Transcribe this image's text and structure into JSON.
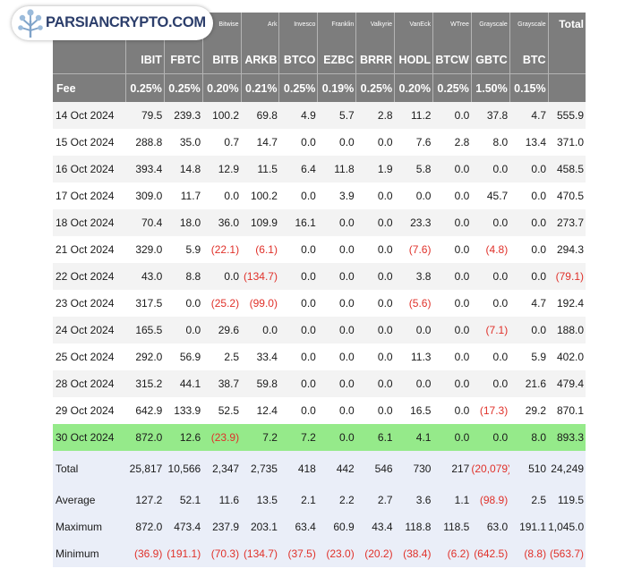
{
  "brand": {
    "name": "PARSIANCRYPTO.COM",
    "logo_icon": "tree-network-icon",
    "accent": "#2c3e6b"
  },
  "header": {
    "issuers": [
      "",
      "",
      "",
      "Bitwise",
      "Ark",
      "Invesco",
      "Franklin",
      "Valkyrie",
      "VanEck",
      "WTree",
      "Grayscale",
      "Grayscale",
      "Total"
    ],
    "tickers": [
      "",
      "IBIT",
      "FBTC",
      "BITB",
      "ARKB",
      "BTCO",
      "EZBC",
      "BRRR",
      "HODL",
      "BTCW",
      "GBTC",
      "BTC",
      ""
    ],
    "fee_label": "Fee",
    "fees": [
      "0.25%",
      "0.25%",
      "0.20%",
      "0.21%",
      "0.25%",
      "0.19%",
      "0.25%",
      "0.20%",
      "0.25%",
      "1.50%",
      "0.15%",
      ""
    ]
  },
  "rows": [
    [
      "14 Oct 2024",
      "79.5",
      "239.3",
      "100.2",
      "69.8",
      "4.9",
      "5.7",
      "2.8",
      "11.2",
      "0.0",
      "37.8",
      "4.7",
      "555.9"
    ],
    [
      "15 Oct 2024",
      "288.8",
      "35.0",
      "0.7",
      "14.7",
      "0.0",
      "0.0",
      "0.0",
      "7.6",
      "2.8",
      "8.0",
      "13.4",
      "371.0"
    ],
    [
      "16 Oct 2024",
      "393.4",
      "14.8",
      "12.9",
      "11.5",
      "6.4",
      "11.8",
      "1.9",
      "5.8",
      "0.0",
      "0.0",
      "0.0",
      "458.5"
    ],
    [
      "17 Oct 2024",
      "309.0",
      "11.7",
      "0.0",
      "100.2",
      "0.0",
      "3.9",
      "0.0",
      "0.0",
      "0.0",
      "45.7",
      "0.0",
      "470.5"
    ],
    [
      "18 Oct 2024",
      "70.4",
      "18.0",
      "36.0",
      "109.9",
      "16.1",
      "0.0",
      "0.0",
      "23.3",
      "0.0",
      "0.0",
      "0.0",
      "273.7"
    ],
    [
      "21 Oct 2024",
      "329.0",
      "5.9",
      "(22.1)",
      "(6.1)",
      "0.0",
      "0.0",
      "0.0",
      "(7.6)",
      "0.0",
      "(4.8)",
      "0.0",
      "294.3"
    ],
    [
      "22 Oct 2024",
      "43.0",
      "8.8",
      "0.0",
      "(134.7)",
      "0.0",
      "0.0",
      "0.0",
      "3.8",
      "0.0",
      "0.0",
      "0.0",
      "(79.1)"
    ],
    [
      "23 Oct 2024",
      "317.5",
      "0.0",
      "(25.2)",
      "(99.0)",
      "0.0",
      "0.0",
      "0.0",
      "(5.6)",
      "0.0",
      "0.0",
      "4.7",
      "192.4"
    ],
    [
      "24 Oct 2024",
      "165.5",
      "0.0",
      "29.6",
      "0.0",
      "0.0",
      "0.0",
      "0.0",
      "0.0",
      "0.0",
      "(7.1)",
      "0.0",
      "188.0"
    ],
    [
      "25 Oct 2024",
      "292.0",
      "56.9",
      "2.5",
      "33.4",
      "0.0",
      "0.0",
      "0.0",
      "11.3",
      "0.0",
      "0.0",
      "5.9",
      "402.0"
    ],
    [
      "28 Oct 2024",
      "315.2",
      "44.1",
      "38.7",
      "59.8",
      "0.0",
      "0.0",
      "0.0",
      "0.0",
      "0.0",
      "0.0",
      "21.6",
      "479.4"
    ],
    [
      "29 Oct 2024",
      "642.9",
      "133.9",
      "52.5",
      "12.4",
      "0.0",
      "0.0",
      "0.0",
      "16.5",
      "0.0",
      "(17.3)",
      "29.2",
      "870.1"
    ],
    [
      "30 Oct 2024",
      "872.0",
      "12.6",
      "(23.9)",
      "7.2",
      "7.2",
      "0.0",
      "6.1",
      "4.1",
      "0.0",
      "0.0",
      "8.0",
      "893.3"
    ]
  ],
  "highlight_row": 12,
  "highlight_color": "#95ea8a",
  "negative_color": "#e0312a",
  "summary": [
    [
      "Total",
      "25,817",
      "10,566",
      "2,347",
      "2,735",
      "418",
      "442",
      "546",
      "730",
      "217",
      "(20,079)",
      "510",
      "24,249"
    ],
    [
      "Average",
      "127.2",
      "52.1",
      "11.6",
      "13.5",
      "2.1",
      "2.2",
      "2.7",
      "3.6",
      "1.1",
      "(98.9)",
      "2.5",
      "119.5"
    ],
    [
      "Maximum",
      "872.0",
      "473.4",
      "237.9",
      "203.1",
      "63.4",
      "60.9",
      "43.4",
      "118.8",
      "118.5",
      "63.0",
      "191.1",
      "1,045.0"
    ],
    [
      "Minimum",
      "(36.9)",
      "(191.1)",
      "(70.3)",
      "(134.7)",
      "(37.5)",
      "(23.0)",
      "(20.2)",
      "(38.4)",
      "(6.2)",
      "(642.5)",
      "(8.8)",
      "(563.7)"
    ]
  ],
  "chart_data": {
    "type": "table",
    "columns": [
      "Date",
      "IBIT",
      "FBTC",
      "BITB",
      "ARKB",
      "BTCO",
      "EZBC",
      "BRRR",
      "HODL",
      "BTCW",
      "GBTC",
      "BTC",
      "Total"
    ],
    "issuers": [
      "Bitwise",
      "Ark",
      "Invesco",
      "Franklin",
      "Valkyrie",
      "VanEck",
      "WTree",
      "Grayscale",
      "Grayscale"
    ],
    "fees": [
      "0.25%",
      "0.25%",
      "0.20%",
      "0.21%",
      "0.25%",
      "0.19%",
      "0.25%",
      "0.20%",
      "0.25%",
      "1.50%",
      "0.15%"
    ],
    "dates": [
      "14 Oct 2024",
      "15 Oct 2024",
      "16 Oct 2024",
      "17 Oct 2024",
      "18 Oct 2024",
      "21 Oct 2024",
      "22 Oct 2024",
      "23 Oct 2024",
      "24 Oct 2024",
      "25 Oct 2024",
      "28 Oct 2024",
      "29 Oct 2024",
      "30 Oct 2024"
    ],
    "values": [
      [
        79.5,
        239.3,
        100.2,
        69.8,
        4.9,
        5.7,
        2.8,
        11.2,
        0.0,
        37.8,
        4.7,
        555.9
      ],
      [
        288.8,
        35.0,
        0.7,
        14.7,
        0.0,
        0.0,
        0.0,
        7.6,
        2.8,
        8.0,
        13.4,
        371.0
      ],
      [
        393.4,
        14.8,
        12.9,
        11.5,
        6.4,
        11.8,
        1.9,
        5.8,
        0.0,
        0.0,
        0.0,
        458.5
      ],
      [
        309.0,
        11.7,
        0.0,
        100.2,
        0.0,
        3.9,
        0.0,
        0.0,
        0.0,
        45.7,
        0.0,
        470.5
      ],
      [
        70.4,
        18.0,
        36.0,
        109.9,
        16.1,
        0.0,
        0.0,
        23.3,
        0.0,
        0.0,
        0.0,
        273.7
      ],
      [
        329.0,
        5.9,
        -22.1,
        -6.1,
        0.0,
        0.0,
        0.0,
        -7.6,
        0.0,
        -4.8,
        0.0,
        294.3
      ],
      [
        43.0,
        8.8,
        0.0,
        -134.7,
        0.0,
        0.0,
        0.0,
        3.8,
        0.0,
        0.0,
        0.0,
        -79.1
      ],
      [
        317.5,
        0.0,
        -25.2,
        -99.0,
        0.0,
        0.0,
        0.0,
        -5.6,
        0.0,
        0.0,
        4.7,
        192.4
      ],
      [
        165.5,
        0.0,
        29.6,
        0.0,
        0.0,
        0.0,
        0.0,
        0.0,
        0.0,
        -7.1,
        0.0,
        188.0
      ],
      [
        292.0,
        56.9,
        2.5,
        33.4,
        0.0,
        0.0,
        0.0,
        11.3,
        0.0,
        0.0,
        5.9,
        402.0
      ],
      [
        315.2,
        44.1,
        38.7,
        59.8,
        0.0,
        0.0,
        0.0,
        0.0,
        0.0,
        0.0,
        21.6,
        479.4
      ],
      [
        642.9,
        133.9,
        52.5,
        12.4,
        0.0,
        0.0,
        0.0,
        16.5,
        0.0,
        -17.3,
        29.2,
        870.1
      ],
      [
        872.0,
        12.6,
        -23.9,
        7.2,
        7.2,
        0.0,
        6.1,
        4.1,
        0.0,
        0.0,
        8.0,
        893.3
      ]
    ],
    "summary": {
      "Total": [
        25817,
        10566,
        2347,
        2735,
        418,
        442,
        546,
        730,
        217,
        -20079,
        510,
        24249
      ],
      "Average": [
        127.2,
        52.1,
        11.6,
        13.5,
        2.1,
        2.2,
        2.7,
        3.6,
        1.1,
        -98.9,
        2.5,
        119.5
      ],
      "Maximum": [
        872.0,
        473.4,
        237.9,
        203.1,
        63.4,
        60.9,
        43.4,
        118.8,
        118.5,
        63.0,
        191.1,
        1045.0
      ],
      "Minimum": [
        -36.9,
        -191.1,
        -70.3,
        -134.7,
        -37.5,
        -23.0,
        -20.2,
        -38.4,
        -6.2,
        -642.5,
        -8.8,
        -563.7
      ]
    }
  }
}
